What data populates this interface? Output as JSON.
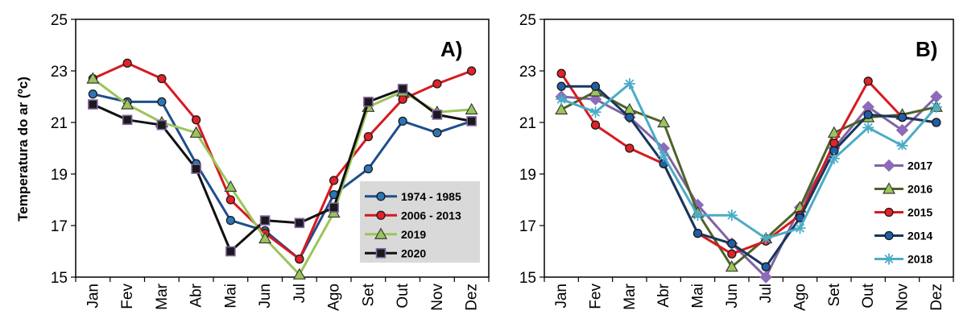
{
  "chart_data": [
    {
      "type": "line",
      "panel_tag": "A)",
      "ylabel": "Temperatura do ar (ºc)",
      "categories": [
        "Jan",
        "Fev",
        "Mar",
        "Abr",
        "Mai",
        "Jun",
        "Jul",
        "Ago",
        "Set",
        "Out",
        "Nov",
        "Dez"
      ],
      "ylim": [
        15,
        25
      ],
      "yticks": [
        "15",
        "17",
        "19",
        "21",
        "23",
        "25"
      ],
      "grid": false,
      "legend": {
        "position": "bottom-right",
        "background": "#d9d9d9"
      },
      "series": [
        {
          "name": "1974 - 1985",
          "color": "#1f4e8c",
          "marker": "circle",
          "marker_fill": "#2e75b6",
          "values": [
            22.1,
            21.8,
            21.8,
            19.4,
            17.2,
            16.8,
            15.7,
            18.2,
            19.2,
            21.05,
            20.6,
            21.05
          ]
        },
        {
          "name": "2006 - 2013",
          "color": "#d71920",
          "marker": "circle",
          "marker_fill": "#e32228",
          "values": [
            22.7,
            23.3,
            22.7,
            21.1,
            18.0,
            16.7,
            15.7,
            18.75,
            20.45,
            21.9,
            22.5,
            23.0
          ]
        },
        {
          "name": "2019",
          "color": "#9bc55a",
          "marker": "triangle",
          "marker_fill": "#9bc55a",
          "values": [
            22.7,
            21.7,
            21.0,
            20.6,
            18.5,
            16.5,
            15.1,
            17.5,
            21.6,
            22.2,
            21.4,
            21.5
          ]
        },
        {
          "name": "2020",
          "color": "#111111",
          "marker": "square",
          "marker_fill": "#1a1a1a",
          "values": [
            21.7,
            21.1,
            20.9,
            19.2,
            16.0,
            17.2,
            17.1,
            17.7,
            21.8,
            22.3,
            21.3,
            21.05
          ]
        }
      ]
    },
    {
      "type": "line",
      "panel_tag": "B)",
      "ylabel": "",
      "categories": [
        "Jan",
        "Fev",
        "Mar",
        "Abr",
        "Mai",
        "Jun",
        "Jul",
        "Ago",
        "Set",
        "Out",
        "Nov",
        "Dez"
      ],
      "ylim": [
        15,
        25
      ],
      "yticks": [
        "15",
        "17",
        "19",
        "21",
        "23",
        "25"
      ],
      "grid": false,
      "legend": {
        "position": "right",
        "background": "#ffffff"
      },
      "series": [
        {
          "name": "2017",
          "color": "#8064a2",
          "marker": "diamond",
          "marker_fill": "#8e6bb8",
          "values": [
            22.0,
            21.9,
            21.2,
            20.0,
            17.8,
            16.3,
            15.0,
            17.7,
            20.0,
            21.6,
            20.7,
            22.0
          ]
        },
        {
          "name": "2016",
          "color": "#4f6228",
          "marker": "triangle",
          "marker_fill": "#9bc55a",
          "values": [
            21.5,
            22.2,
            21.5,
            21.0,
            17.5,
            15.4,
            16.5,
            17.7,
            20.6,
            21.2,
            21.3,
            21.6
          ]
        },
        {
          "name": "2015",
          "color": "#d71920",
          "marker": "circle",
          "marker_fill": "#e32228",
          "values": [
            22.9,
            20.9,
            20.0,
            19.4,
            16.7,
            15.9,
            16.4,
            17.4,
            20.2,
            22.6,
            21.2,
            21.0
          ]
        },
        {
          "name": "2014",
          "color": "#17375e",
          "marker": "circle",
          "marker_fill": "#1f5fa8",
          "values": [
            22.4,
            22.4,
            21.2,
            19.4,
            16.7,
            16.3,
            15.4,
            17.3,
            19.9,
            21.3,
            21.2,
            21.0
          ]
        },
        {
          "name": "2018",
          "color": "#4bacc6",
          "marker": "star",
          "marker_fill": "#4bacc6",
          "values": [
            21.9,
            21.4,
            22.5,
            19.7,
            17.4,
            17.4,
            16.5,
            16.9,
            19.6,
            20.8,
            20.1,
            21.6
          ]
        }
      ]
    }
  ]
}
